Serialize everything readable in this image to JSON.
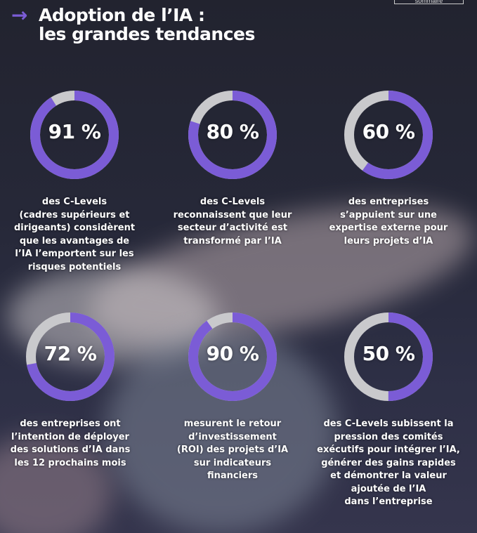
{
  "header": {
    "title_line1": "Adoption de l’IA :",
    "title_line2": "les grandes tendances",
    "sommaire_label": "sommaire",
    "arrow_icon": "arrow-right-icon"
  },
  "colors": {
    "accent": "#7b5cd6",
    "remainder": "#c9c9cc",
    "background": "#23243a"
  },
  "chart_data": {
    "type": "donut",
    "items": [
      {
        "value": 91,
        "label": "91 %",
        "text": "des C-Levels\n(cadres supérieurs et\ndirigeants) considèrent\nque les avantages de\nl’IA l’emportent sur les\nrisques potentiels"
      },
      {
        "value": 80,
        "label": "80 %",
        "text": "des C-Levels\nreconnaissent que leur\nsecteur d’activité est\ntransformé par l’IA"
      },
      {
        "value": 60,
        "label": "60 %",
        "text": "des entreprises\ns’appuient sur une\nexpertise externe pour\nleurs projets d’IA"
      },
      {
        "value": 72,
        "label": "72 %",
        "text": "des entreprises ont\nl’intention de déployer\ndes solutions d’IA dans\nles 12 prochains mois"
      },
      {
        "value": 90,
        "label": "90 %",
        "text": "mesurent le retour\nd’investissement\n(ROI) des projets d’IA\nsur indicateurs\nfinanciers"
      },
      {
        "value": 50,
        "label": "50 %",
        "text": "des C-Levels subissent la\npression des comités\nexécutifs pour intégrer l’IA,\ngénérer des gains rapides\net démontrer la valeur\najoutée de l’IA\ndans l’entreprise"
      }
    ]
  }
}
